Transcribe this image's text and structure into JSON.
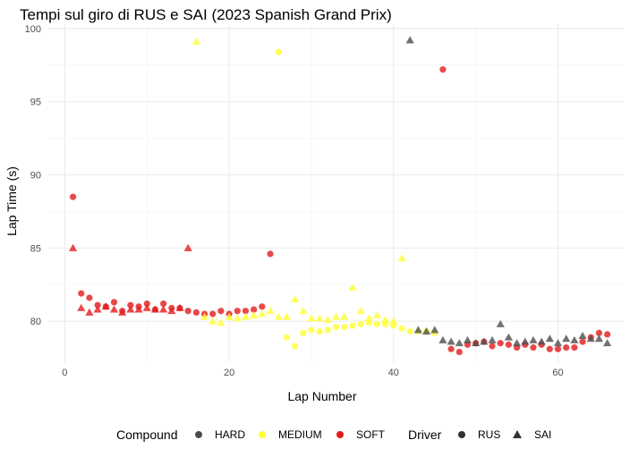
{
  "chart_data": {
    "type": "scatter",
    "title": "Tempi sul giro di RUS e SAI (2023 Spanish Grand Prix)",
    "xlabel": "Lap Number",
    "ylabel": "Lap Time (s)",
    "xlim": [
      -2,
      68
    ],
    "ylim": [
      77.2,
      100.3
    ],
    "xticks": [
      0,
      20,
      40,
      60
    ],
    "yticks": [
      80,
      85,
      90,
      95,
      100
    ],
    "grid": true,
    "legend_position": "bottom",
    "legend": {
      "compound_title": "Compound",
      "driver_title": "Driver",
      "compounds": [
        {
          "name": "HARD",
          "color": "#4d4d4d"
        },
        {
          "name": "MEDIUM",
          "color": "#ffff33"
        },
        {
          "name": "SOFT",
          "color": "#e41a1c"
        }
      ],
      "drivers": [
        {
          "name": "RUS",
          "shape": "circle"
        },
        {
          "name": "SAI",
          "shape": "triangle"
        }
      ]
    },
    "series": [
      {
        "name": "RUS",
        "shape": "circle",
        "points": [
          {
            "x": 1,
            "y": 88.5,
            "c": "SOFT"
          },
          {
            "x": 2,
            "y": 81.9,
            "c": "SOFT"
          },
          {
            "x": 3,
            "y": 81.6,
            "c": "SOFT"
          },
          {
            "x": 4,
            "y": 81.1,
            "c": "SOFT"
          },
          {
            "x": 5,
            "y": 81.0,
            "c": "SOFT"
          },
          {
            "x": 6,
            "y": 81.3,
            "c": "SOFT"
          },
          {
            "x": 7,
            "y": 80.7,
            "c": "SOFT"
          },
          {
            "x": 8,
            "y": 81.1,
            "c": "SOFT"
          },
          {
            "x": 9,
            "y": 81.0,
            "c": "SOFT"
          },
          {
            "x": 10,
            "y": 81.2,
            "c": "SOFT"
          },
          {
            "x": 11,
            "y": 80.8,
            "c": "SOFT"
          },
          {
            "x": 12,
            "y": 81.2,
            "c": "SOFT"
          },
          {
            "x": 13,
            "y": 80.9,
            "c": "SOFT"
          },
          {
            "x": 14,
            "y": 80.9,
            "c": "SOFT"
          },
          {
            "x": 15,
            "y": 80.7,
            "c": "SOFT"
          },
          {
            "x": 16,
            "y": 80.6,
            "c": "SOFT"
          },
          {
            "x": 17,
            "y": 80.5,
            "c": "SOFT"
          },
          {
            "x": 18,
            "y": 80.5,
            "c": "SOFT"
          },
          {
            "x": 19,
            "y": 80.7,
            "c": "SOFT"
          },
          {
            "x": 20,
            "y": 80.5,
            "c": "SOFT"
          },
          {
            "x": 21,
            "y": 80.7,
            "c": "SOFT"
          },
          {
            "x": 22,
            "y": 80.7,
            "c": "SOFT"
          },
          {
            "x": 23,
            "y": 80.8,
            "c": "SOFT"
          },
          {
            "x": 24,
            "y": 81.0,
            "c": "SOFT"
          },
          {
            "x": 25,
            "y": 84.6,
            "c": "SOFT"
          },
          {
            "x": 26,
            "y": 98.4,
            "c": "MEDIUM"
          },
          {
            "x": 27,
            "y": 78.9,
            "c": "MEDIUM"
          },
          {
            "x": 28,
            "y": 78.3,
            "c": "MEDIUM"
          },
          {
            "x": 29,
            "y": 79.2,
            "c": "MEDIUM"
          },
          {
            "x": 30,
            "y": 79.4,
            "c": "MEDIUM"
          },
          {
            "x": 31,
            "y": 79.3,
            "c": "MEDIUM"
          },
          {
            "x": 32,
            "y": 79.4,
            "c": "MEDIUM"
          },
          {
            "x": 33,
            "y": 79.6,
            "c": "MEDIUM"
          },
          {
            "x": 34,
            "y": 79.6,
            "c": "MEDIUM"
          },
          {
            "x": 35,
            "y": 79.7,
            "c": "MEDIUM"
          },
          {
            "x": 36,
            "y": 79.8,
            "c": "MEDIUM"
          },
          {
            "x": 37,
            "y": 79.9,
            "c": "MEDIUM"
          },
          {
            "x": 38,
            "y": 79.8,
            "c": "MEDIUM"
          },
          {
            "x": 39,
            "y": 79.8,
            "c": "MEDIUM"
          },
          {
            "x": 40,
            "y": 79.7,
            "c": "MEDIUM"
          },
          {
            "x": 41,
            "y": 79.5,
            "c": "MEDIUM"
          },
          {
            "x": 42,
            "y": 79.3,
            "c": "MEDIUM"
          },
          {
            "x": 43,
            "y": 79.3,
            "c": "MEDIUM"
          },
          {
            "x": 44,
            "y": 79.3,
            "c": "MEDIUM"
          },
          {
            "x": 45,
            "y": 79.2,
            "c": "MEDIUM"
          },
          {
            "x": 46,
            "y": 97.2,
            "c": "SOFT"
          },
          {
            "x": 47,
            "y": 78.1,
            "c": "SOFT"
          },
          {
            "x": 48,
            "y": 77.9,
            "c": "SOFT"
          },
          {
            "x": 49,
            "y": 78.4,
            "c": "SOFT"
          },
          {
            "x": 50,
            "y": 78.5,
            "c": "SOFT"
          },
          {
            "x": 51,
            "y": 78.6,
            "c": "SOFT"
          },
          {
            "x": 52,
            "y": 78.3,
            "c": "SOFT"
          },
          {
            "x": 53,
            "y": 78.5,
            "c": "SOFT"
          },
          {
            "x": 54,
            "y": 78.4,
            "c": "SOFT"
          },
          {
            "x": 55,
            "y": 78.2,
            "c": "SOFT"
          },
          {
            "x": 56,
            "y": 78.4,
            "c": "SOFT"
          },
          {
            "x": 57,
            "y": 78.2,
            "c": "SOFT"
          },
          {
            "x": 58,
            "y": 78.4,
            "c": "SOFT"
          },
          {
            "x": 59,
            "y": 78.1,
            "c": "SOFT"
          },
          {
            "x": 60,
            "y": 78.1,
            "c": "SOFT"
          },
          {
            "x": 61,
            "y": 78.2,
            "c": "SOFT"
          },
          {
            "x": 62,
            "y": 78.2,
            "c": "SOFT"
          },
          {
            "x": 63,
            "y": 78.6,
            "c": "SOFT"
          },
          {
            "x": 64,
            "y": 78.9,
            "c": "SOFT"
          },
          {
            "x": 65,
            "y": 79.2,
            "c": "SOFT"
          },
          {
            "x": 66,
            "y": 79.1,
            "c": "SOFT"
          }
        ]
      },
      {
        "name": "SAI",
        "shape": "triangle",
        "points": [
          {
            "x": 1,
            "y": 85.0,
            "c": "SOFT"
          },
          {
            "x": 2,
            "y": 80.9,
            "c": "SOFT"
          },
          {
            "x": 3,
            "y": 80.6,
            "c": "SOFT"
          },
          {
            "x": 4,
            "y": 80.8,
            "c": "SOFT"
          },
          {
            "x": 5,
            "y": 81.0,
            "c": "SOFT"
          },
          {
            "x": 6,
            "y": 80.8,
            "c": "SOFT"
          },
          {
            "x": 7,
            "y": 80.6,
            "c": "SOFT"
          },
          {
            "x": 8,
            "y": 80.8,
            "c": "SOFT"
          },
          {
            "x": 9,
            "y": 80.8,
            "c": "SOFT"
          },
          {
            "x": 10,
            "y": 80.9,
            "c": "SOFT"
          },
          {
            "x": 11,
            "y": 80.8,
            "c": "SOFT"
          },
          {
            "x": 12,
            "y": 80.8,
            "c": "SOFT"
          },
          {
            "x": 13,
            "y": 80.7,
            "c": "SOFT"
          },
          {
            "x": 14,
            "y": 80.9,
            "c": "SOFT"
          },
          {
            "x": 15,
            "y": 85.0,
            "c": "SOFT"
          },
          {
            "x": 16,
            "y": 99.1,
            "c": "MEDIUM"
          },
          {
            "x": 17,
            "y": 80.3,
            "c": "MEDIUM"
          },
          {
            "x": 18,
            "y": 80.0,
            "c": "MEDIUM"
          },
          {
            "x": 19,
            "y": 79.9,
            "c": "MEDIUM"
          },
          {
            "x": 20,
            "y": 80.3,
            "c": "MEDIUM"
          },
          {
            "x": 21,
            "y": 80.2,
            "c": "MEDIUM"
          },
          {
            "x": 22,
            "y": 80.3,
            "c": "MEDIUM"
          },
          {
            "x": 23,
            "y": 80.4,
            "c": "MEDIUM"
          },
          {
            "x": 24,
            "y": 80.5,
            "c": "MEDIUM"
          },
          {
            "x": 25,
            "y": 80.7,
            "c": "MEDIUM"
          },
          {
            "x": 26,
            "y": 80.3,
            "c": "MEDIUM"
          },
          {
            "x": 27,
            "y": 80.3,
            "c": "MEDIUM"
          },
          {
            "x": 28,
            "y": 81.5,
            "c": "MEDIUM"
          },
          {
            "x": 29,
            "y": 80.7,
            "c": "MEDIUM"
          },
          {
            "x": 30,
            "y": 80.2,
            "c": "MEDIUM"
          },
          {
            "x": 31,
            "y": 80.2,
            "c": "MEDIUM"
          },
          {
            "x": 32,
            "y": 80.1,
            "c": "MEDIUM"
          },
          {
            "x": 33,
            "y": 80.3,
            "c": "MEDIUM"
          },
          {
            "x": 34,
            "y": 80.3,
            "c": "MEDIUM"
          },
          {
            "x": 35,
            "y": 82.3,
            "c": "MEDIUM"
          },
          {
            "x": 36,
            "y": 80.7,
            "c": "MEDIUM"
          },
          {
            "x": 37,
            "y": 80.2,
            "c": "MEDIUM"
          },
          {
            "x": 38,
            "y": 80.4,
            "c": "MEDIUM"
          },
          {
            "x": 39,
            "y": 80.1,
            "c": "MEDIUM"
          },
          {
            "x": 40,
            "y": 80.0,
            "c": "MEDIUM"
          },
          {
            "x": 41,
            "y": 84.3,
            "c": "MEDIUM"
          },
          {
            "x": 42,
            "y": 99.2,
            "c": "HARD"
          },
          {
            "x": 43,
            "y": 79.4,
            "c": "HARD"
          },
          {
            "x": 44,
            "y": 79.3,
            "c": "HARD"
          },
          {
            "x": 45,
            "y": 79.4,
            "c": "HARD"
          },
          {
            "x": 46,
            "y": 78.7,
            "c": "HARD"
          },
          {
            "x": 47,
            "y": 78.6,
            "c": "HARD"
          },
          {
            "x": 48,
            "y": 78.5,
            "c": "HARD"
          },
          {
            "x": 49,
            "y": 78.7,
            "c": "HARD"
          },
          {
            "x": 50,
            "y": 78.5,
            "c": "HARD"
          },
          {
            "x": 51,
            "y": 78.6,
            "c": "HARD"
          },
          {
            "x": 52,
            "y": 78.7,
            "c": "HARD"
          },
          {
            "x": 53,
            "y": 79.8,
            "c": "HARD"
          },
          {
            "x": 54,
            "y": 78.9,
            "c": "HARD"
          },
          {
            "x": 55,
            "y": 78.5,
            "c": "HARD"
          },
          {
            "x": 56,
            "y": 78.6,
            "c": "HARD"
          },
          {
            "x": 57,
            "y": 78.7,
            "c": "HARD"
          },
          {
            "x": 58,
            "y": 78.6,
            "c": "HARD"
          },
          {
            "x": 59,
            "y": 78.8,
            "c": "HARD"
          },
          {
            "x": 60,
            "y": 78.5,
            "c": "HARD"
          },
          {
            "x": 61,
            "y": 78.8,
            "c": "HARD"
          },
          {
            "x": 62,
            "y": 78.7,
            "c": "HARD"
          },
          {
            "x": 63,
            "y": 79.0,
            "c": "HARD"
          },
          {
            "x": 64,
            "y": 78.8,
            "c": "HARD"
          },
          {
            "x": 65,
            "y": 78.8,
            "c": "HARD"
          },
          {
            "x": 66,
            "y": 78.5,
            "c": "HARD"
          }
        ]
      }
    ]
  }
}
